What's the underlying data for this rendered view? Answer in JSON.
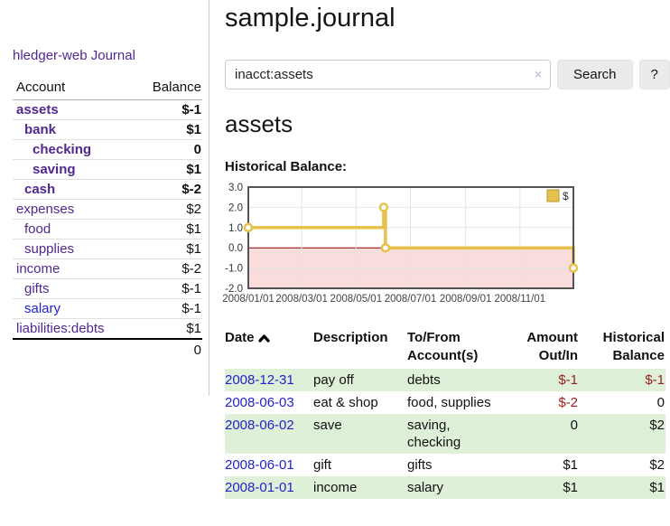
{
  "app": {
    "brand": "hledger-web"
  },
  "sidebar": {
    "journal_link": "Journal",
    "accounts": {
      "header_account": "Account",
      "header_balance": "Balance",
      "rows": [
        {
          "name": "assets",
          "balance": "$-1",
          "indent": 0,
          "bold": true,
          "negative": "strong",
          "link": "purple"
        },
        {
          "name": "bank",
          "balance": "$1",
          "indent": 1,
          "bold": true,
          "negative": "none",
          "link": "purple"
        },
        {
          "name": "checking",
          "balance": "0",
          "indent": 2,
          "bold": true,
          "negative": "none",
          "link": "purple"
        },
        {
          "name": "saving",
          "balance": "$1",
          "indent": 2,
          "bold": true,
          "negative": "none",
          "link": "purple"
        },
        {
          "name": "cash",
          "balance": "$-2",
          "indent": 1,
          "bold": true,
          "negative": "strong",
          "link": "purple"
        },
        {
          "name": "expenses",
          "balance": "$2",
          "indent": 0,
          "bold": false,
          "negative": "none",
          "link": "purple"
        },
        {
          "name": "food",
          "balance": "$1",
          "indent": 1,
          "bold": false,
          "negative": "none",
          "link": "purple"
        },
        {
          "name": "supplies",
          "balance": "$1",
          "indent": 1,
          "bold": false,
          "negative": "none",
          "link": "purple"
        },
        {
          "name": "income",
          "balance": "$-2",
          "indent": 0,
          "bold": false,
          "negative": "soft",
          "link": "purple"
        },
        {
          "name": "gifts",
          "balance": "$-1",
          "indent": 1,
          "bold": false,
          "negative": "soft",
          "link": "purple"
        },
        {
          "name": "salary",
          "balance": "$-1",
          "indent": 1,
          "bold": false,
          "negative": "soft",
          "link": "blue"
        },
        {
          "name": "liabilities:debts",
          "balance": "$1",
          "indent": 0,
          "bold": false,
          "negative": "none",
          "link": "purple"
        }
      ],
      "total": "0"
    }
  },
  "main": {
    "title": "sample.journal",
    "search": {
      "value": "inacct:assets",
      "clear_icon": "×",
      "button_label": "Search",
      "help_label": "?"
    },
    "account_heading": "assets",
    "chart_heading": "Historical Balance:"
  },
  "chart_data": {
    "type": "line",
    "title": "Historical Balance",
    "xlim": [
      "2008-01-01",
      "2008-12-31"
    ],
    "ylim": [
      -2,
      3
    ],
    "yticks": [
      3.0,
      2.0,
      1.0,
      0.0,
      -1.0,
      -2.0
    ],
    "xticks": [
      "2008/01/01",
      "2008/03/01",
      "2008/05/01",
      "2008/07/01",
      "2008/09/01",
      "2008/11/01"
    ],
    "grid": true,
    "legend_position": "top-right",
    "series": [
      {
        "name": "$",
        "color": "#e6c24d",
        "step": "before",
        "x": [
          "2008-01-01",
          "2008-06-01",
          "2008-06-03",
          "2008-12-31"
        ],
        "y": [
          1,
          2,
          0,
          -1
        ]
      }
    ],
    "negative_region_color": "#f9dcdc",
    "zero_line_color": "#8b0000"
  },
  "register": {
    "headers": [
      {
        "l1": "Date",
        "l2": "",
        "align": "left",
        "sortable": true
      },
      {
        "l1": "Description",
        "l2": "",
        "align": "left",
        "sortable": false
      },
      {
        "l1": "To/From",
        "l2": "Account(s)",
        "align": "left",
        "sortable": false
      },
      {
        "l1": "Amount",
        "l2": "Out/In",
        "align": "right",
        "sortable": false
      },
      {
        "l1": "Historical",
        "l2": "Balance",
        "align": "right",
        "sortable": false
      }
    ],
    "rows": [
      {
        "date": "2008-12-31",
        "description": "pay off",
        "accounts": "debts",
        "amount": "$-1",
        "amount_negative": true,
        "balance": "$-1",
        "balance_negative": true,
        "highlight": true
      },
      {
        "date": "2008-06-03",
        "description": "eat & shop",
        "accounts": "food, supplies",
        "amount": "$-2",
        "amount_negative": true,
        "balance": "0",
        "balance_negative": false,
        "highlight": false
      },
      {
        "date": "2008-06-02",
        "description": "save",
        "accounts": "saving, checking",
        "amount": "0",
        "amount_negative": false,
        "balance": "$2",
        "balance_negative": false,
        "highlight": true
      },
      {
        "date": "2008-06-01",
        "description": "gift",
        "accounts": "gifts",
        "amount": "$1",
        "amount_negative": false,
        "balance": "$2",
        "balance_negative": false,
        "highlight": false
      },
      {
        "date": "2008-01-01",
        "description": "income",
        "accounts": "salary",
        "amount": "$1",
        "amount_negative": false,
        "balance": "$1",
        "balance_negative": false,
        "highlight": true
      }
    ]
  },
  "colors": {
    "link_purple": "#50288f",
    "link_blue": "#2222cc",
    "negative_strong": "#801515",
    "negative_soft": "#b36b6b",
    "row_highlight_green": "#dff0d8",
    "chart_gold": "#e6c24d",
    "chart_negative_bg": "#f9dcdc",
    "chart_zero_line": "#8b0000"
  }
}
